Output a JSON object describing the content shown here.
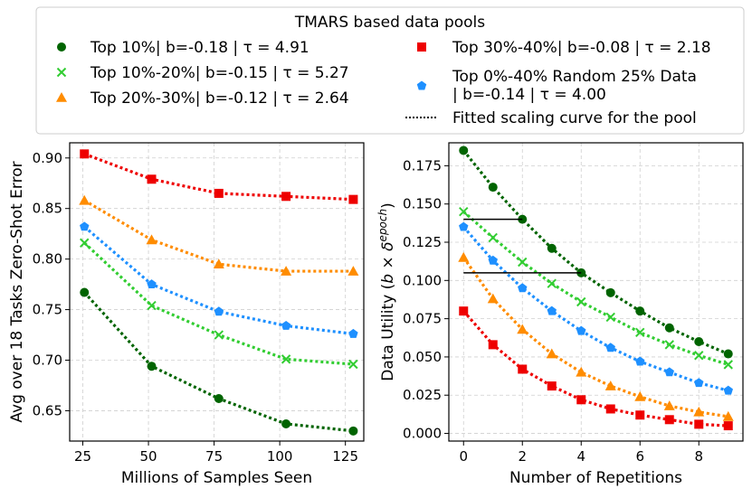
{
  "legend": {
    "title": "TMARS based data pools",
    "entries": [
      {
        "key": "s1",
        "line1": "Top 10%| b=-0.18 | τ = 4.91"
      },
      {
        "key": "s2",
        "line1": "Top 10%-20%| b=-0.15 | τ = 5.27"
      },
      {
        "key": "s3",
        "line1": "Top 20%-30%| b=-0.12 | τ = 2.64"
      },
      {
        "key": "s4",
        "line1": "Top 30%-40%| b=-0.08 | τ = 2.18"
      },
      {
        "key": "s5",
        "line1": "Top 0%-40% Random 25% Data",
        "line2": "| b=-0.14 | τ = 4.00"
      },
      {
        "key": "fit",
        "line1": "Fitted scaling curve for the pool"
      }
    ]
  },
  "chart_data": [
    {
      "type": "scatter",
      "xlabel": "Millions of Samples Seen",
      "ylabel": "Avg over 18 Tasks Zero-Shot Error",
      "xlim": [
        20,
        132
      ],
      "ylim": [
        0.62,
        0.915
      ],
      "xticks": [
        25,
        50,
        75,
        100,
        125
      ],
      "yticks": [
        0.65,
        0.7,
        0.75,
        0.8,
        0.85,
        0.9
      ],
      "ytick_labels": [
        "0.65",
        "0.70",
        "0.75",
        "0.80",
        "0.85",
        "0.90"
      ],
      "grid": true,
      "x": [
        25.6,
        51.2,
        76.8,
        102.4,
        128
      ],
      "series": [
        {
          "key": "s1",
          "name": "Top 10%",
          "color": "#006400",
          "marker": "circle",
          "values": [
            0.767,
            0.694,
            0.662,
            0.637,
            0.63
          ]
        },
        {
          "key": "s2",
          "name": "Top 10%-20%",
          "color": "#32cd32",
          "marker": "x",
          "values": [
            0.816,
            0.754,
            0.725,
            0.701,
            0.696
          ]
        },
        {
          "key": "s3",
          "name": "Top 20%-30%",
          "color": "#ff8c00",
          "marker": "triangle",
          "values": [
            0.858,
            0.819,
            0.795,
            0.788,
            0.788
          ]
        },
        {
          "key": "s4",
          "name": "Top 30%-40%",
          "color": "#ee0000",
          "marker": "square",
          "values": [
            0.904,
            0.879,
            0.865,
            0.862,
            0.859
          ]
        },
        {
          "key": "s5",
          "name": "Top 0%-40% Random 25% Data",
          "color": "#1e90ff",
          "marker": "pentagon",
          "values": [
            0.832,
            0.775,
            0.748,
            0.734,
            0.726
          ]
        }
      ]
    },
    {
      "type": "scatter",
      "xlabel": "Number of Repetitions",
      "ylabel": "Data Utility (b × δ^epoch)",
      "ylabel_parts": {
        "pre": "Data Utility (",
        "b": "b",
        "times": " × ",
        "delta": "δ",
        "sup": "epoch",
        "post": ")"
      },
      "xlim": [
        -0.5,
        9.5
      ],
      "ylim": [
        -0.005,
        0.19
      ],
      "xticks": [
        0,
        2,
        4,
        6,
        8
      ],
      "yticks": [
        0.0,
        0.025,
        0.05,
        0.075,
        0.1,
        0.125,
        0.15,
        0.175
      ],
      "ytick_labels": [
        "0.000",
        "0.025",
        "0.050",
        "0.075",
        "0.100",
        "0.125",
        "0.150",
        "0.175"
      ],
      "grid": true,
      "x": [
        0,
        1,
        2,
        3,
        4,
        5,
        6,
        7,
        8,
        9
      ],
      "series": [
        {
          "key": "s1",
          "name": "Top 10%",
          "color": "#006400",
          "marker": "circle",
          "values": [
            0.185,
            0.161,
            0.14,
            0.121,
            0.105,
            0.092,
            0.08,
            0.069,
            0.06,
            0.052
          ]
        },
        {
          "key": "s2",
          "name": "Top 10%-20%",
          "color": "#32cd32",
          "marker": "x",
          "values": [
            0.145,
            0.128,
            0.112,
            0.098,
            0.086,
            0.076,
            0.066,
            0.058,
            0.051,
            0.045
          ]
        },
        {
          "key": "s3",
          "name": "Top 20%-30%",
          "color": "#ff8c00",
          "marker": "triangle",
          "values": [
            0.115,
            0.088,
            0.068,
            0.052,
            0.04,
            0.031,
            0.024,
            0.018,
            0.014,
            0.011
          ]
        },
        {
          "key": "s4",
          "name": "Top 30%-40%",
          "color": "#ee0000",
          "marker": "square",
          "values": [
            0.08,
            0.058,
            0.042,
            0.031,
            0.022,
            0.016,
            0.012,
            0.009,
            0.006,
            0.005
          ]
        },
        {
          "key": "s5",
          "name": "Top 0%-40% Random 25% Data",
          "color": "#1e90ff",
          "marker": "pentagon",
          "values": [
            0.135,
            0.113,
            0.095,
            0.08,
            0.067,
            0.056,
            0.047,
            0.04,
            0.033,
            0.028
          ]
        }
      ],
      "annotation_lines": [
        {
          "name": "half-life-line-1",
          "x0": 0,
          "x1": 2,
          "y": 0.14
        },
        {
          "name": "half-life-line-2",
          "x0": 0,
          "x1": 4,
          "y": 0.105
        }
      ]
    }
  ]
}
